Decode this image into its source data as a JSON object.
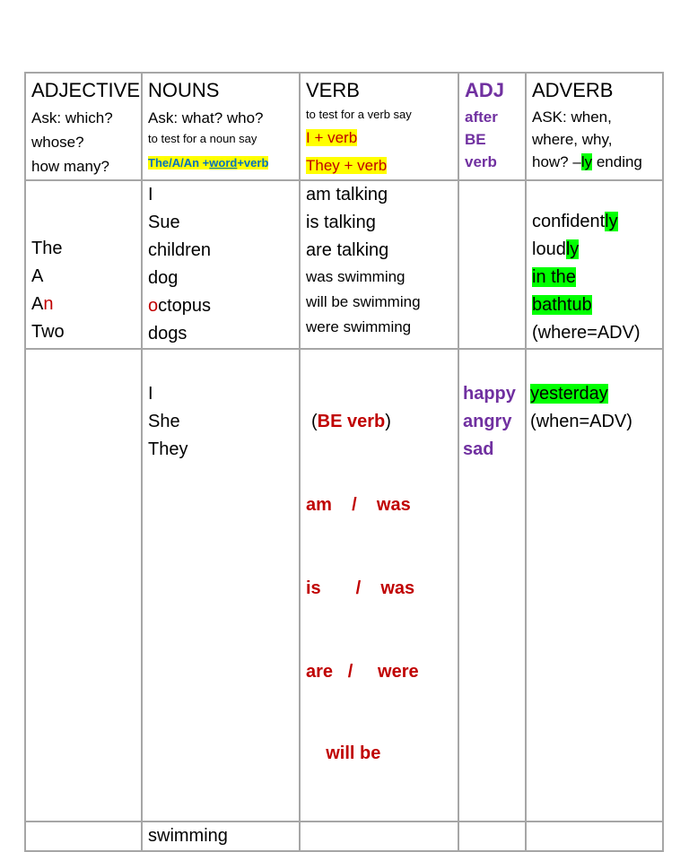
{
  "header": {
    "adjective": {
      "title": "ADJECTIVE",
      "lines": [
        "Ask: which?",
        "whose?",
        "how many?"
      ]
    },
    "nouns": {
      "title": "NOUNS",
      "ask": "Ask: what? who?",
      "test": "to test for a noun say",
      "formula_pre": "The/A/An +",
      "formula_word": "word",
      "formula_post": "+verb"
    },
    "verb": {
      "title": "VERB",
      "test": "to test for a verb say",
      "f1": "I + verb",
      "f2": "They  + verb"
    },
    "adj": {
      "title": "ADJ",
      "lines": [
        "after",
        "BE",
        "verb"
      ]
    },
    "adverb": {
      "title": "ADVERB",
      "lines": [
        "ASK: when,",
        "where, why,"
      ],
      "last_pre": "how? –",
      "last_hl": "ly",
      "last_post": " ending"
    }
  },
  "row2": {
    "articles": [
      {
        "a": "The",
        "b": ""
      },
      {
        "a": "A",
        "b": ""
      },
      {
        "a": "A",
        "b": "n"
      },
      {
        "a": "Two",
        "b": ""
      }
    ],
    "nouns": [
      "I",
      "Sue",
      "children",
      "dog",
      "octopus",
      "dogs"
    ],
    "octopus_first": "o",
    "octopus_rest": "ctopus",
    "verbs_big": [
      "am talking",
      "is talking",
      "are talking"
    ],
    "verbs_small": [
      "was swimming",
      "will be swimming",
      "were swimming"
    ],
    "adverbs": {
      "a_pre": "confident",
      "a_hl": "ly",
      "b_pre": "loud",
      "b_hl": "ly",
      "c": "in the",
      "d": "bathtub",
      "e": "(where=ADV)"
    }
  },
  "row3": {
    "pronouns": [
      "I",
      "She",
      "They"
    ],
    "be_open": "(",
    "be_label": "BE verb",
    "be_close": ")",
    "be_lines": [
      "am    /    was",
      "is       /    was",
      "are   /     were",
      "    will be"
    ],
    "adjs": [
      "happy",
      "angry",
      "sad"
    ],
    "adverb": "yesterday",
    "adverb_note": "(when=ADV)"
  },
  "row4": {
    "noun": "swimming"
  }
}
